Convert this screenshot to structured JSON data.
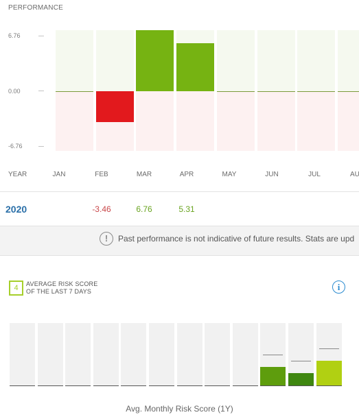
{
  "performance": {
    "title": "PERFORMANCE",
    "y_ticks": [
      "6.76",
      "0.00",
      "-6.76"
    ],
    "year_header": "YEAR",
    "months": [
      "JAN",
      "FEB",
      "MAR",
      "APR",
      "MAY",
      "JUN",
      "JUL",
      "AU"
    ],
    "year": "2020",
    "values": [
      "",
      "-3.46",
      "6.76",
      "5.31",
      "",
      "",
      "",
      ""
    ],
    "positive_color": "#76b312",
    "negative_color": "#e2191d"
  },
  "chart_data": [
    {
      "type": "bar",
      "categories": [
        "JAN",
        "FEB",
        "MAR",
        "APR",
        "MAY",
        "JUN",
        "JUL",
        "AU"
      ],
      "values": [
        0,
        -3.46,
        6.76,
        5.31,
        0,
        0,
        0,
        0
      ],
      "ylim": [
        -6.76,
        6.76
      ]
    },
    {
      "type": "bar",
      "title": "Avg. Monthly Risk Score (1Y)",
      "values": [
        0,
        0,
        0,
        0,
        0,
        0,
        0,
        0,
        0,
        3,
        2,
        4
      ],
      "ylim": [
        0,
        10
      ]
    }
  ],
  "notice": {
    "text": "Past performance is not indicative of future results. Stats are upd",
    "icon": "exclamation-circle-icon"
  },
  "risk": {
    "score": "4",
    "label_line1": "AVERAGE RISK SCORE",
    "label_line2": "OF THE LAST 7 DAYS",
    "caption": "Avg. Monthly Risk Score (1Y)",
    "info_icon": "info-circle-icon",
    "bar_colors": [
      "#5e9d0d",
      "#3f8710",
      "#b1d012"
    ],
    "accent": "#a6cf2a"
  }
}
